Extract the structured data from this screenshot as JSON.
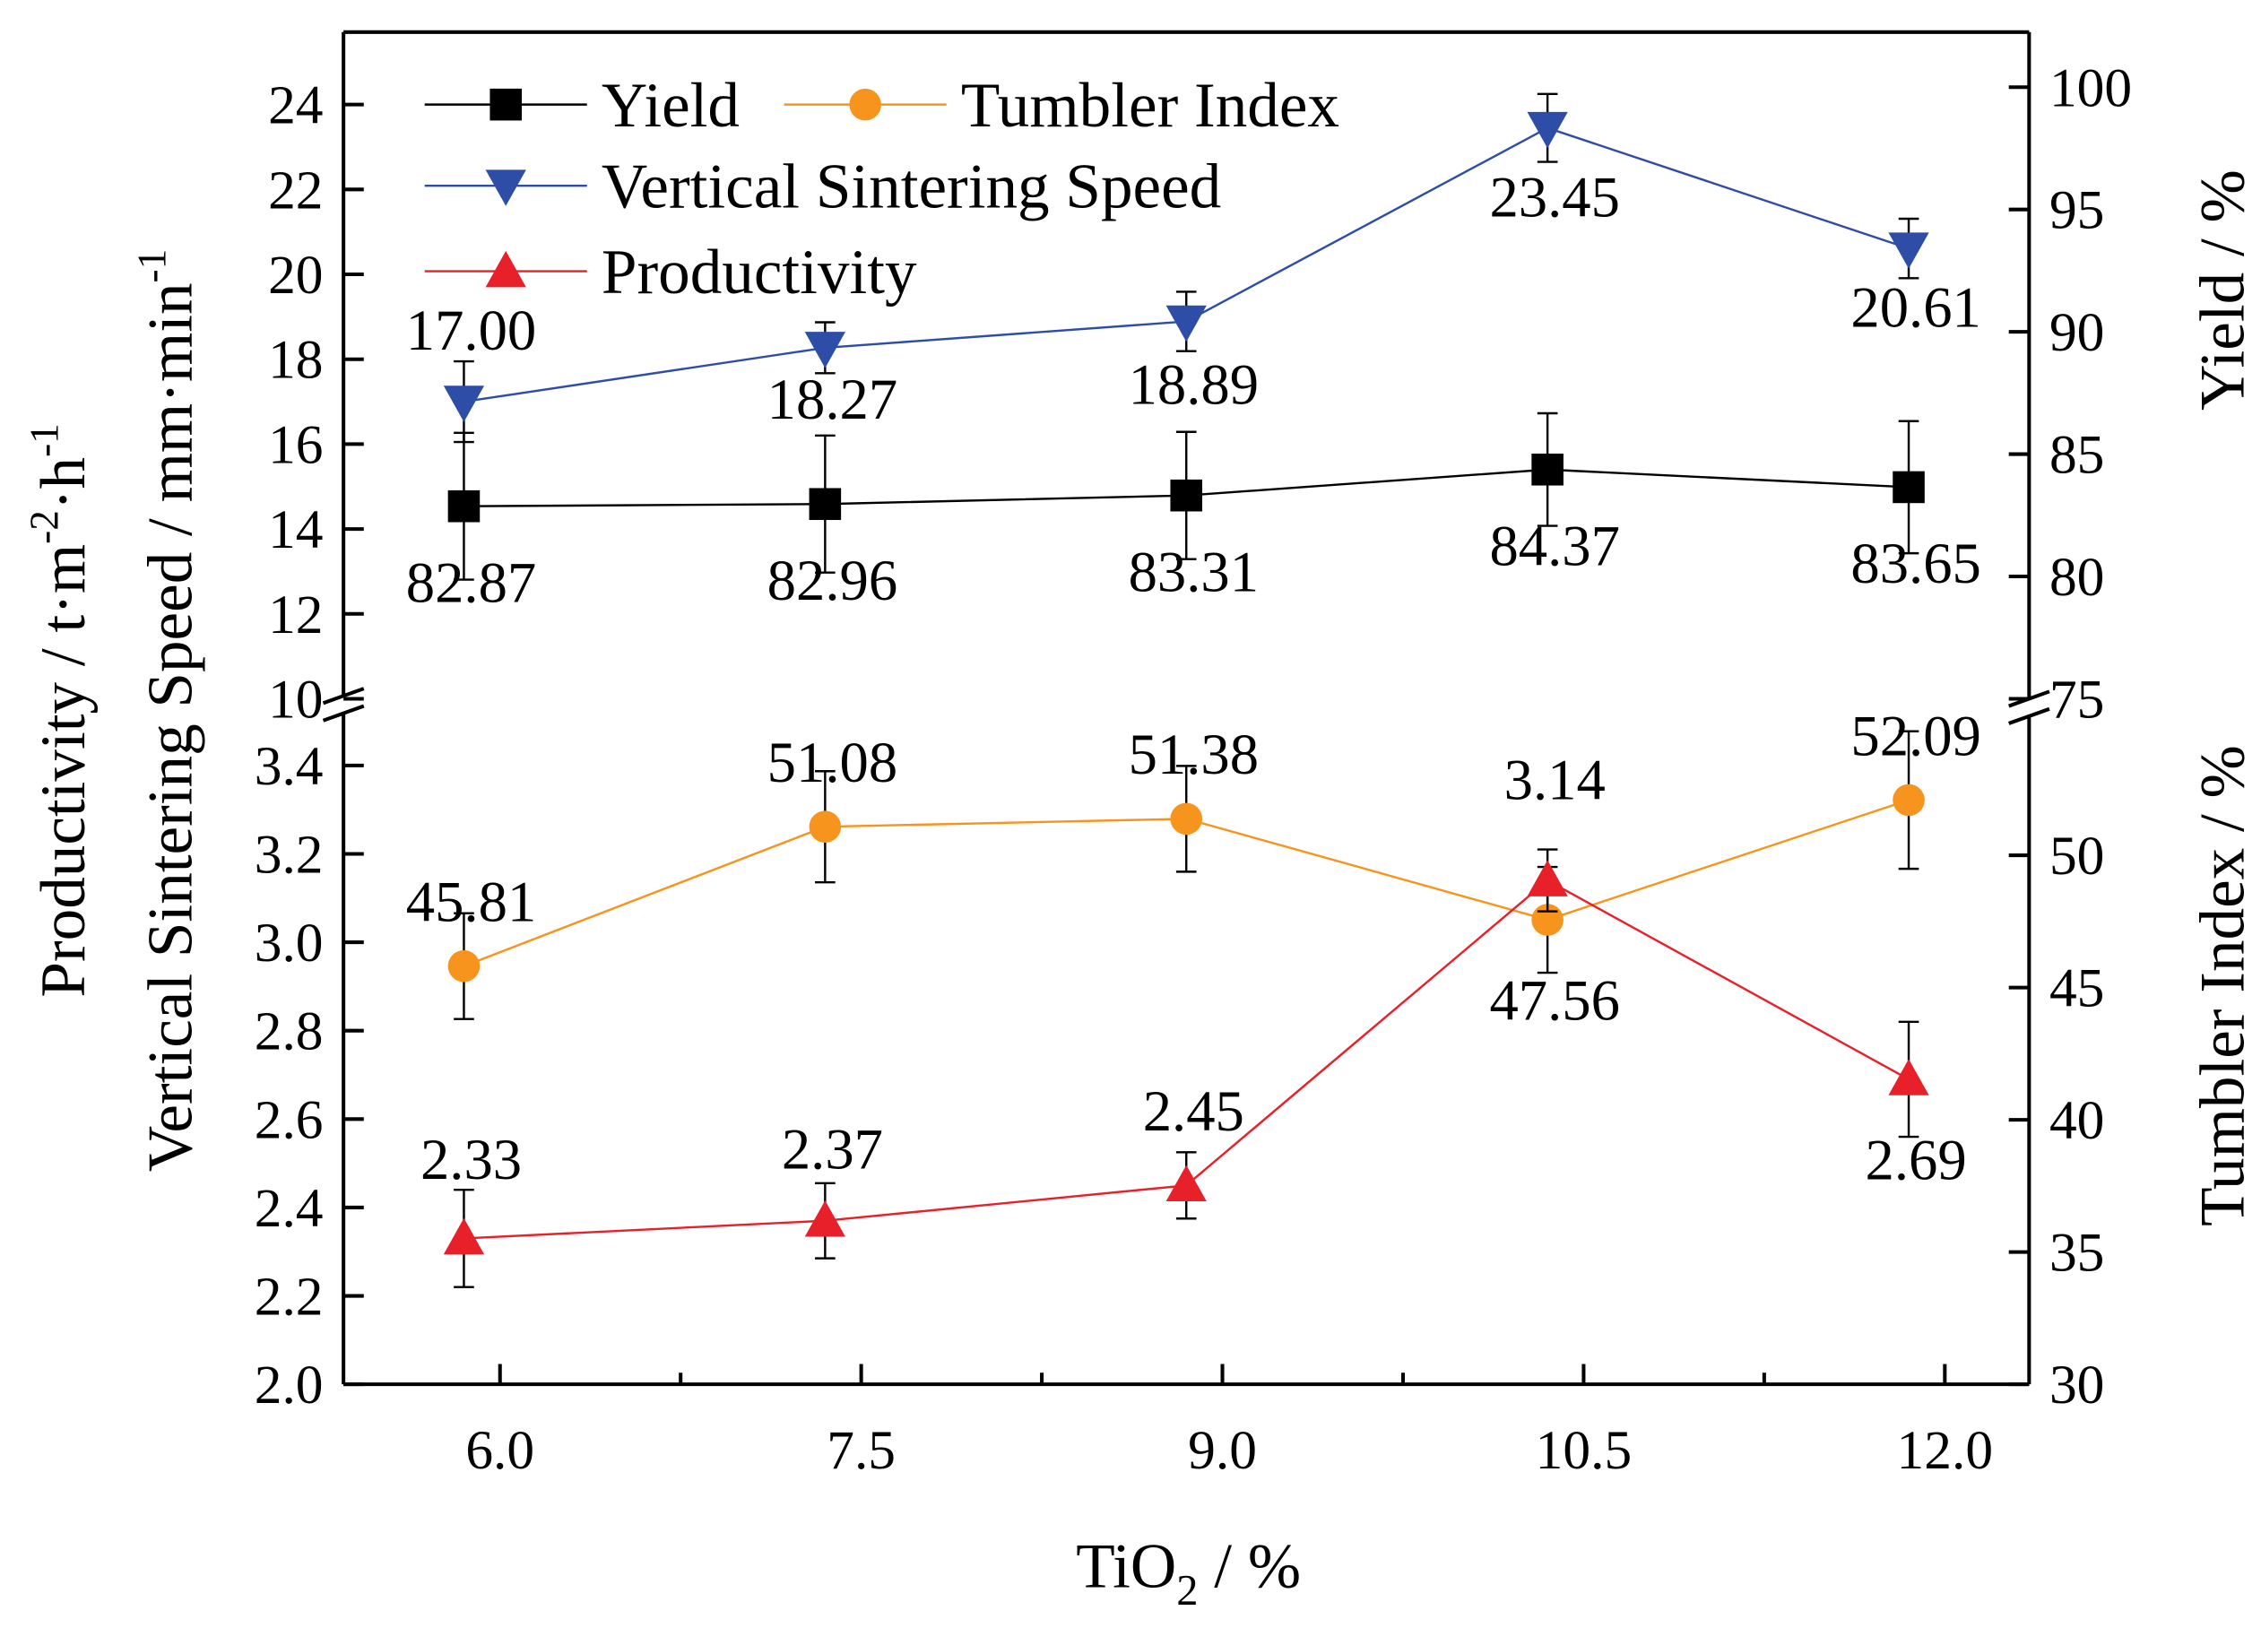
{
  "chart_data": {
    "type": "line",
    "title": "",
    "xlabel": "TiO2 / %",
    "xlabel_main": "TiO",
    "xlabel_sub": "2",
    "xlabel_rest": " / %",
    "x": [
      5.85,
      7.35,
      8.85,
      10.35,
      11.85
    ],
    "xlim": [
      5.35,
      12.35
    ],
    "xticks": [
      6.0,
      7.5,
      9.0,
      10.5,
      12.0
    ],
    "xtick_labels": [
      "6.0",
      "7.5",
      "9.0",
      "10.5",
      "12.0"
    ],
    "ylabel_left_outer": "Productivity / t·m⁻²·h⁻¹",
    "ylabel_left_outer_parts": [
      "Productivity / t·m",
      "-2",
      "·h",
      "-1"
    ],
    "ylabel_left_inner": "Vertical Sintering Speed / mm·min⁻¹",
    "ylabel_left_inner_parts": [
      "Vertical Sintering Speed / mm·min",
      "-1"
    ],
    "ylabel_right_upper": "Yield / %",
    "ylabel_right_lower": "Tumbler Index / %",
    "axes": {
      "upper_left": {
        "ylim": [
          10,
          25.7
        ],
        "ticks": [
          "10",
          "12",
          "14",
          "16",
          "18",
          "20",
          "22",
          "24"
        ]
      },
      "upper_right": {
        "ylim": [
          75,
          102.25
        ],
        "ticks": [
          "75",
          "80",
          "85",
          "90",
          "95",
          "100"
        ]
      },
      "lower_left": {
        "ylim": [
          2.0,
          3.5
        ],
        "ticks": [
          "2.0",
          "2.2",
          "2.4",
          "2.6",
          "2.8",
          "3.0",
          "3.2",
          "3.4"
        ]
      },
      "lower_right": {
        "ylim": [
          30,
          55
        ],
        "ticks": [
          "30",
          "35",
          "40",
          "45",
          "50"
        ]
      }
    },
    "legend_placement": "top-left",
    "series": [
      {
        "name": "Yield",
        "axis": "upper_right",
        "color": "#000000",
        "marker": "square",
        "values": [
          82.87,
          82.96,
          83.31,
          84.37,
          83.65
        ],
        "errors": [
          3.0,
          2.8,
          2.6,
          2.3,
          2.7
        ],
        "labels": [
          "82.87",
          "82.96",
          "83.31",
          "84.37",
          "83.65"
        ]
      },
      {
        "name": "Tumbler Index",
        "axis": "lower_right",
        "color": "#F7941D",
        "marker": "circle",
        "values": [
          45.81,
          51.08,
          51.38,
          47.56,
          52.09
        ],
        "errors": [
          2.0,
          2.1,
          2.0,
          2.0,
          2.6
        ],
        "labels": [
          "45.81",
          "51.08",
          "51.38",
          "47.56",
          "52.09"
        ]
      },
      {
        "name": "Vertical Sintering Speed",
        "axis": "upper_left",
        "color": "#2E4DA7",
        "marker": "triangle-down",
        "values": [
          17.0,
          18.27,
          18.89,
          23.45,
          20.61
        ],
        "errors": [
          0.95,
          0.6,
          0.7,
          0.8,
          0.7
        ],
        "labels": [
          "17.00",
          "18.27",
          "18.89",
          "23.45",
          "20.61"
        ]
      },
      {
        "name": "Productivity",
        "axis": "lower_left",
        "color": "#E8202A",
        "marker": "triangle-up",
        "values": [
          2.33,
          2.37,
          2.45,
          3.14,
          2.69
        ],
        "errors": [
          0.11,
          0.085,
          0.075,
          0.07,
          0.13
        ],
        "labels": [
          "2.33",
          "2.37",
          "2.45",
          "3.14",
          "2.69"
        ]
      }
    ]
  }
}
